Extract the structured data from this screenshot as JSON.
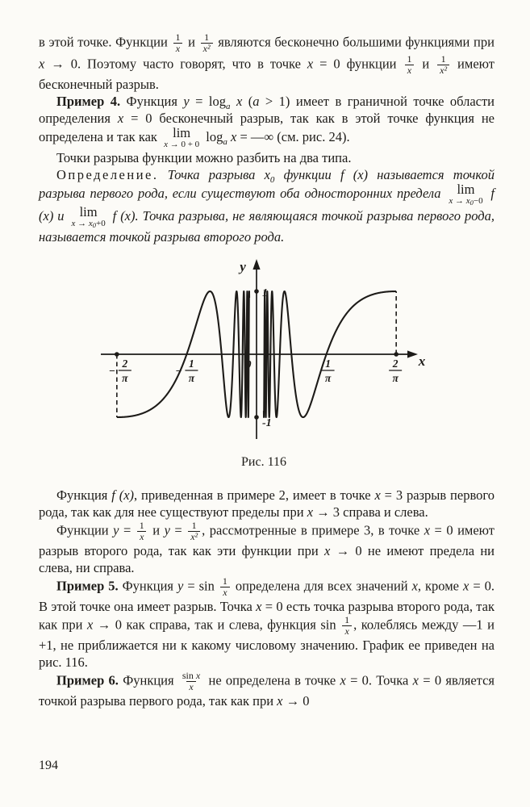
{
  "page": {
    "number": "194"
  },
  "figure": {
    "caption": "Рис. 116",
    "chart_data": {
      "type": "line",
      "function": "y = sin(1/x)",
      "x_min": -0.6366,
      "x_max": 0.6366,
      "inner_cutoff": 0.033,
      "ylim": [
        -1,
        1
      ],
      "grid": false,
      "x_axis_label": "x",
      "y_axis_label": "y",
      "origin_label": "0",
      "x_ticks": [
        {
          "x": -0.6366,
          "num": "2",
          "den": "π",
          "neg": true
        },
        {
          "x": -0.3183,
          "num": "1",
          "den": "π",
          "neg": true
        },
        {
          "x": 0.3183,
          "num": "1",
          "den": "π",
          "neg": false
        },
        {
          "x": 0.6366,
          "num": "2",
          "den": "π",
          "neg": false
        }
      ],
      "y_ticks": [
        {
          "y": 1,
          "label": "1"
        },
        {
          "y": -1,
          "label": "-1"
        }
      ],
      "dashed_drop_lines": [
        {
          "x": -0.6366,
          "y": -1
        },
        {
          "x": 0.6366,
          "y": 1
        }
      ],
      "axis_dots_x": [
        -0.6366,
        0.6366
      ],
      "key_points": [
        {
          "x": "-2/π",
          "y": -1
        },
        {
          "x": "-1/π",
          "y": 0
        },
        {
          "x": "1/π",
          "y": 0
        },
        {
          "x": "2/π",
          "y": 1
        }
      ]
    }
  },
  "paragraphs_before": [
    {
      "indent": false,
      "segments": [
        {
          "t": "t",
          "s": "в этой точке. Функции "
        },
        {
          "t": "frac",
          "n": [
            {
              "t": "t",
              "s": "1"
            }
          ],
          "d": [
            {
              "t": "i",
              "s": "x"
            }
          ]
        },
        {
          "t": "t",
          "s": " и "
        },
        {
          "t": "frac",
          "n": [
            {
              "t": "t",
              "s": "1"
            }
          ],
          "d": [
            {
              "t": "i",
              "s": "x²"
            }
          ]
        },
        {
          "t": "t",
          "s": " являются бесконечно большими функциями при "
        },
        {
          "t": "i",
          "s": "x"
        },
        {
          "t": "t",
          "s": " → 0. Поэтому часто говорят, что в точке "
        },
        {
          "t": "i",
          "s": "x"
        },
        {
          "t": "t",
          "s": " = 0 функции "
        },
        {
          "t": "frac",
          "n": [
            {
              "t": "t",
              "s": "1"
            }
          ],
          "d": [
            {
              "t": "i",
              "s": "x"
            }
          ]
        },
        {
          "t": "t",
          "s": " и "
        },
        {
          "t": "frac",
          "n": [
            {
              "t": "t",
              "s": "1"
            }
          ],
          "d": [
            {
              "t": "i",
              "s": "x²"
            }
          ]
        },
        {
          "t": "t",
          "s": " имеют бесконечный разрыв."
        }
      ]
    },
    {
      "indent": true,
      "segments": [
        {
          "t": "b",
          "s": "Пример 4. "
        },
        {
          "t": "t",
          "s": "Функция "
        },
        {
          "t": "i",
          "s": "y"
        },
        {
          "t": "t",
          "s": " = log"
        },
        {
          "t": "sub",
          "s": "a"
        },
        {
          "t": "i",
          "s": " x"
        },
        {
          "t": "t",
          "s": " ("
        },
        {
          "t": "i",
          "s": "a"
        },
        {
          "t": "t",
          "s": " > 1) имеет в граничной точке области определения "
        },
        {
          "t": "i",
          "s": "x"
        },
        {
          "t": "t",
          "s": " = 0 бесконечный разрыв, так как в этой точке функция не определена и так как "
        },
        {
          "t": "lim",
          "sub": [
            {
              "t": "i",
              "s": "x"
            },
            {
              "t": "t",
              "s": " → 0 + 0"
            }
          ]
        },
        {
          "t": "t",
          "s": " log"
        },
        {
          "t": "sub",
          "s": "a"
        },
        {
          "t": "i",
          "s": " x"
        },
        {
          "t": "t",
          "s": " = —∞ (см. рис. 24)."
        }
      ]
    },
    {
      "indent": true,
      "segments": [
        {
          "t": "t",
          "s": "Точки разрыва функции можно разбить на два типа."
        }
      ]
    },
    {
      "indent": true,
      "segments": [
        {
          "t": "sp",
          "s": "Определение."
        },
        {
          "t": "i",
          "s": " Точка разрыва "
        },
        {
          "t": "i",
          "s": "x"
        },
        {
          "t": "sub",
          "s": "0"
        },
        {
          "t": "i",
          "s": " функции "
        },
        {
          "t": "i",
          "s": "f (x)"
        },
        {
          "t": "i",
          "s": " называется точкой разрыва первого рода, если существуют оба односторонних предела "
        },
        {
          "t": "lim",
          "sub": [
            {
              "t": "i",
              "s": "x"
            },
            {
              "t": "t",
              "s": " → "
            },
            {
              "t": "i",
              "s": "x"
            },
            {
              "t": "sub",
              "s": "0"
            },
            {
              "t": "t",
              "s": "−0"
            }
          ]
        },
        {
          "t": "i",
          "s": " f (x)"
        },
        {
          "t": "i",
          "s": " и "
        },
        {
          "t": "lim",
          "sub": [
            {
              "t": "i",
              "s": "x"
            },
            {
              "t": "t",
              "s": " → "
            },
            {
              "t": "i",
              "s": "x"
            },
            {
              "t": "sub",
              "s": "0"
            },
            {
              "t": "t",
              "s": "+0"
            }
          ]
        },
        {
          "t": "i",
          "s": " f (x). Точка разрыва, не являющаяся точкой разрыва первого рода, называется точкой разрыва второго рода."
        }
      ]
    }
  ],
  "paragraphs_after": [
    {
      "indent": true,
      "segments": [
        {
          "t": "t",
          "s": "Функция "
        },
        {
          "t": "i",
          "s": "f (x)"
        },
        {
          "t": "t",
          "s": ", приведенная в примере 2, имеет в точке "
        },
        {
          "t": "i",
          "s": "x"
        },
        {
          "t": "t",
          "s": " = 3 разрыв первого рода, так как для нее существуют пределы при "
        },
        {
          "t": "i",
          "s": "x"
        },
        {
          "t": "t",
          "s": " → 3 справа и слева."
        }
      ]
    },
    {
      "indent": true,
      "segments": [
        {
          "t": "t",
          "s": "Функции "
        },
        {
          "t": "i",
          "s": "y"
        },
        {
          "t": "t",
          "s": " = "
        },
        {
          "t": "frac",
          "n": [
            {
              "t": "t",
              "s": "1"
            }
          ],
          "d": [
            {
              "t": "i",
              "s": "x"
            }
          ]
        },
        {
          "t": "t",
          "s": " и "
        },
        {
          "t": "i",
          "s": "y"
        },
        {
          "t": "t",
          "s": " = "
        },
        {
          "t": "frac",
          "n": [
            {
              "t": "t",
              "s": "1"
            }
          ],
          "d": [
            {
              "t": "i",
              "s": "x²"
            }
          ]
        },
        {
          "t": "t",
          "s": ", рассмотренные в примере 3, в точке "
        },
        {
          "t": "i",
          "s": "x"
        },
        {
          "t": "t",
          "s": " = 0 имеют разрыв второго рода, так как эти функции при "
        },
        {
          "t": "i",
          "s": "x"
        },
        {
          "t": "t",
          "s": " → 0 не имеют предела ни слева, ни справа."
        }
      ]
    },
    {
      "indent": true,
      "segments": [
        {
          "t": "b",
          "s": "Пример 5. "
        },
        {
          "t": "t",
          "s": "Функция "
        },
        {
          "t": "i",
          "s": "y"
        },
        {
          "t": "t",
          "s": " = sin "
        },
        {
          "t": "frac",
          "n": [
            {
              "t": "t",
              "s": "1"
            }
          ],
          "d": [
            {
              "t": "i",
              "s": "x"
            }
          ]
        },
        {
          "t": "t",
          "s": " определена для всех значений "
        },
        {
          "t": "i",
          "s": "x"
        },
        {
          "t": "t",
          "s": ", кроме "
        },
        {
          "t": "i",
          "s": "x"
        },
        {
          "t": "t",
          "s": " = 0. В этой точке она имеет разрыв. Точка "
        },
        {
          "t": "i",
          "s": "x"
        },
        {
          "t": "t",
          "s": " = 0 есть точка разрыва второго рода, так как при "
        },
        {
          "t": "i",
          "s": "x"
        },
        {
          "t": "t",
          "s": " → 0 как справа, так и слева, функция sin "
        },
        {
          "t": "frac",
          "n": [
            {
              "t": "t",
              "s": "1"
            }
          ],
          "d": [
            {
              "t": "i",
              "s": "x"
            }
          ]
        },
        {
          "t": "t",
          "s": ", колеблясь между —1 и +1, не приближается ни к какому числовому значению. График ее приведен на рис. 116."
        }
      ]
    },
    {
      "indent": true,
      "segments": [
        {
          "t": "b",
          "s": "Пример 6. "
        },
        {
          "t": "t",
          "s": "Функция "
        },
        {
          "t": "frac",
          "n": [
            {
              "t": "t",
              "s": "sin "
            },
            {
              "t": "i",
              "s": "x"
            }
          ],
          "d": [
            {
              "t": "i",
              "s": "x"
            }
          ]
        },
        {
          "t": "t",
          "s": " не определена в точке "
        },
        {
          "t": "i",
          "s": "x"
        },
        {
          "t": "t",
          "s": " = 0. Точка "
        },
        {
          "t": "i",
          "s": "x"
        },
        {
          "t": "t",
          "s": " = 0 является точкой разрыва первого рода, так как при "
        },
        {
          "t": "i",
          "s": "x"
        },
        {
          "t": "t",
          "s": " → 0"
        }
      ]
    }
  ]
}
